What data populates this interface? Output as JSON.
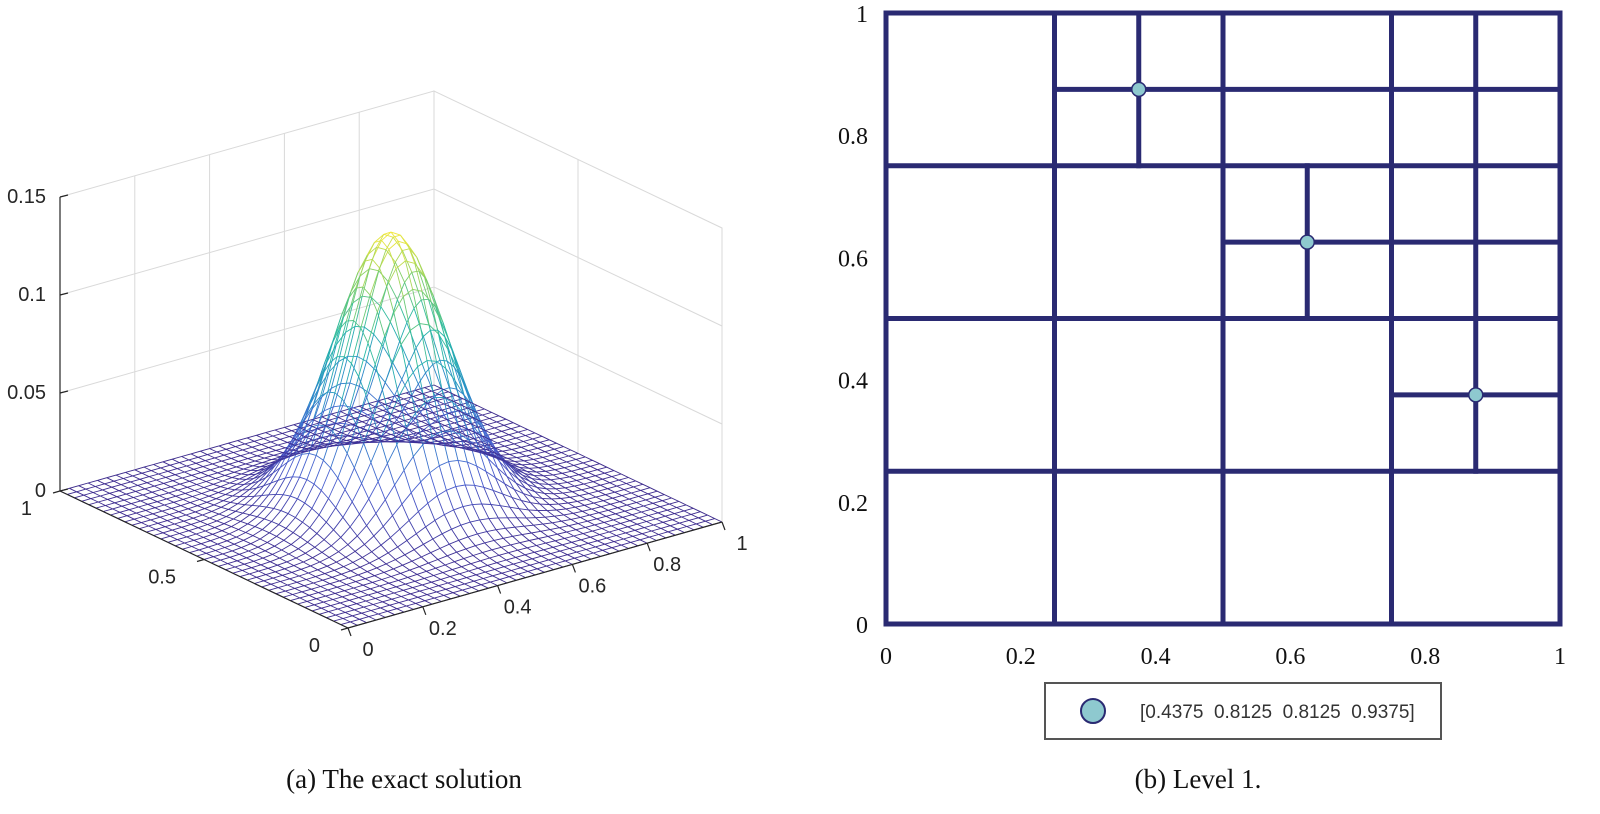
{
  "chart_data": [
    {
      "type": "surface",
      "caption": "(a) The exact solution",
      "xlim": [
        0,
        1
      ],
      "ylim": [
        0,
        1
      ],
      "zlim": [
        0,
        0.15
      ],
      "x_ticks": [
        "0",
        "0.2",
        "0.4",
        "0.6",
        "0.8",
        "1"
      ],
      "y_ticks": [
        "0",
        "0.5",
        "1"
      ],
      "z_ticks": [
        "0",
        "0.05",
        "0.1",
        "0.15"
      ],
      "peak_location": [
        0.5,
        0.5
      ],
      "peak_value": 0.14,
      "mesh_lines": 40,
      "colormap": [
        "#3d2b8f",
        "#4a5fd0",
        "#2a8dc8",
        "#25b8a8",
        "#7dce6a",
        "#f3e83b"
      ]
    },
    {
      "type": "mesh",
      "caption": "(b) Level 1.",
      "xlim": [
        0,
        1
      ],
      "ylim": [
        0,
        1
      ],
      "x_ticks": [
        "0",
        "0.2",
        "0.4",
        "0.6",
        "0.8",
        "1"
      ],
      "y_ticks": [
        "0",
        "0.2",
        "0.4",
        "0.6",
        "0.8",
        "1"
      ],
      "line_color": "#2a2a72",
      "marker_color": "#8ec9cf",
      "segments": [
        [
          [
            0,
            0
          ],
          [
            1,
            0
          ]
        ],
        [
          [
            0,
            1
          ],
          [
            1,
            1
          ]
        ],
        [
          [
            0,
            0
          ],
          [
            0,
            1
          ]
        ],
        [
          [
            1,
            0
          ],
          [
            1,
            1
          ]
        ],
        [
          [
            0.25,
            0
          ],
          [
            0.25,
            1
          ]
        ],
        [
          [
            0.5,
            0
          ],
          [
            0.5,
            1
          ]
        ],
        [
          [
            0.75,
            0
          ],
          [
            0.75,
            1
          ]
        ],
        [
          [
            0,
            0.25
          ],
          [
            1,
            0.25
          ]
        ],
        [
          [
            0,
            0.5
          ],
          [
            1,
            0.5
          ]
        ],
        [
          [
            0,
            0.75
          ],
          [
            1,
            0.75
          ]
        ],
        [
          [
            0.375,
            0.75
          ],
          [
            0.375,
            1
          ]
        ],
        [
          [
            0.25,
            0.875
          ],
          [
            1,
            0.875
          ]
        ],
        [
          [
            0.625,
            0.5
          ],
          [
            0.625,
            0.75
          ]
        ],
        [
          [
            0.5,
            0.625
          ],
          [
            1,
            0.625
          ]
        ],
        [
          [
            0.875,
            0.25
          ],
          [
            0.875,
            1
          ]
        ],
        [
          [
            0.75,
            0.375
          ],
          [
            1,
            0.375
          ]
        ]
      ],
      "markers": [
        [
          0.375,
          0.875
        ],
        [
          0.625,
          0.625
        ],
        [
          0.875,
          0.375
        ]
      ],
      "legend": {
        "label": "[0.4375  0.8125  0.8125  0.9375]",
        "position": "bottom-center"
      }
    }
  ]
}
